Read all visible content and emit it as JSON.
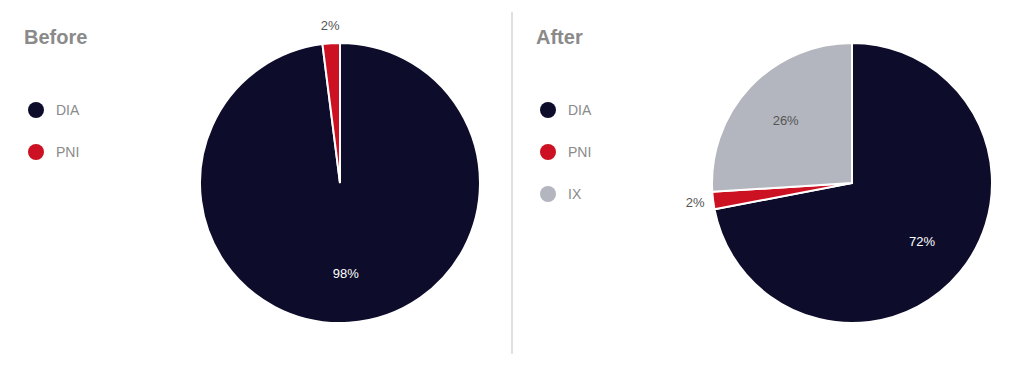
{
  "chart_data": [
    {
      "type": "pie",
      "title": "Before",
      "categories": [
        "DIA",
        "PNI"
      ],
      "values": [
        98,
        2
      ],
      "value_labels": [
        "98%",
        "2%"
      ],
      "colors": [
        "#0d0d2b",
        "#cc1122"
      ],
      "data_labels": true
    },
    {
      "type": "pie",
      "title": "After",
      "categories": [
        "DIA",
        "PNI",
        "IX"
      ],
      "values": [
        72,
        2,
        26
      ],
      "value_labels": [
        "72%",
        "2%",
        "26%"
      ],
      "colors": [
        "#0d0d2b",
        "#cc1122",
        "#b3b6be"
      ],
      "data_labels": true
    }
  ]
}
